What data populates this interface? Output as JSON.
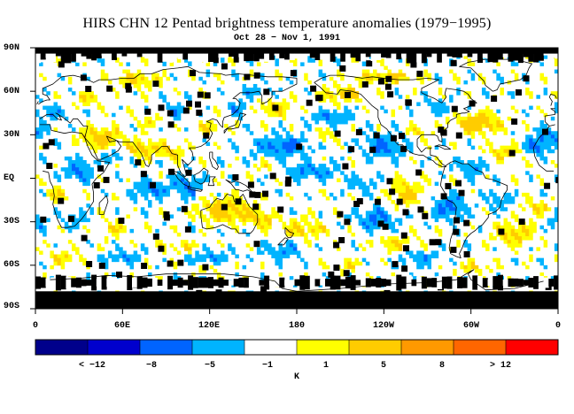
{
  "title": "HIRS CHN 12 Pentad brightness temperature anomalies (1979−1995)",
  "subtitle": "Oct 28 − Nov 1, 1991",
  "lat_labels": [
    "90N",
    "60N",
    "30N",
    "EQ",
    "30S",
    "60S",
    "90S"
  ],
  "lon_labels": [
    "0",
    "60E",
    "120E",
    "180",
    "120W",
    "60W",
    "0"
  ],
  "colorbar": {
    "unit": "K",
    "colors": [
      "#00008b",
      "#0000cd",
      "#0064ff",
      "#00b4ff",
      "#ffffff",
      "#ffff00",
      "#ffcc00",
      "#ff9900",
      "#ff6600",
      "#ff0000"
    ],
    "labels": [
      "< −12",
      "−8",
      "−5",
      "−1",
      "1",
      "5",
      "8",
      "> 12"
    ]
  },
  "map_colors": {
    "missing": "#000000",
    "strong_cold": "#0064ff",
    "cold": "#00b4ff",
    "neutral": "#ffffff",
    "warm": "#ffff00",
    "strong_warm": "#ffcc00",
    "coast": "#000000"
  }
}
